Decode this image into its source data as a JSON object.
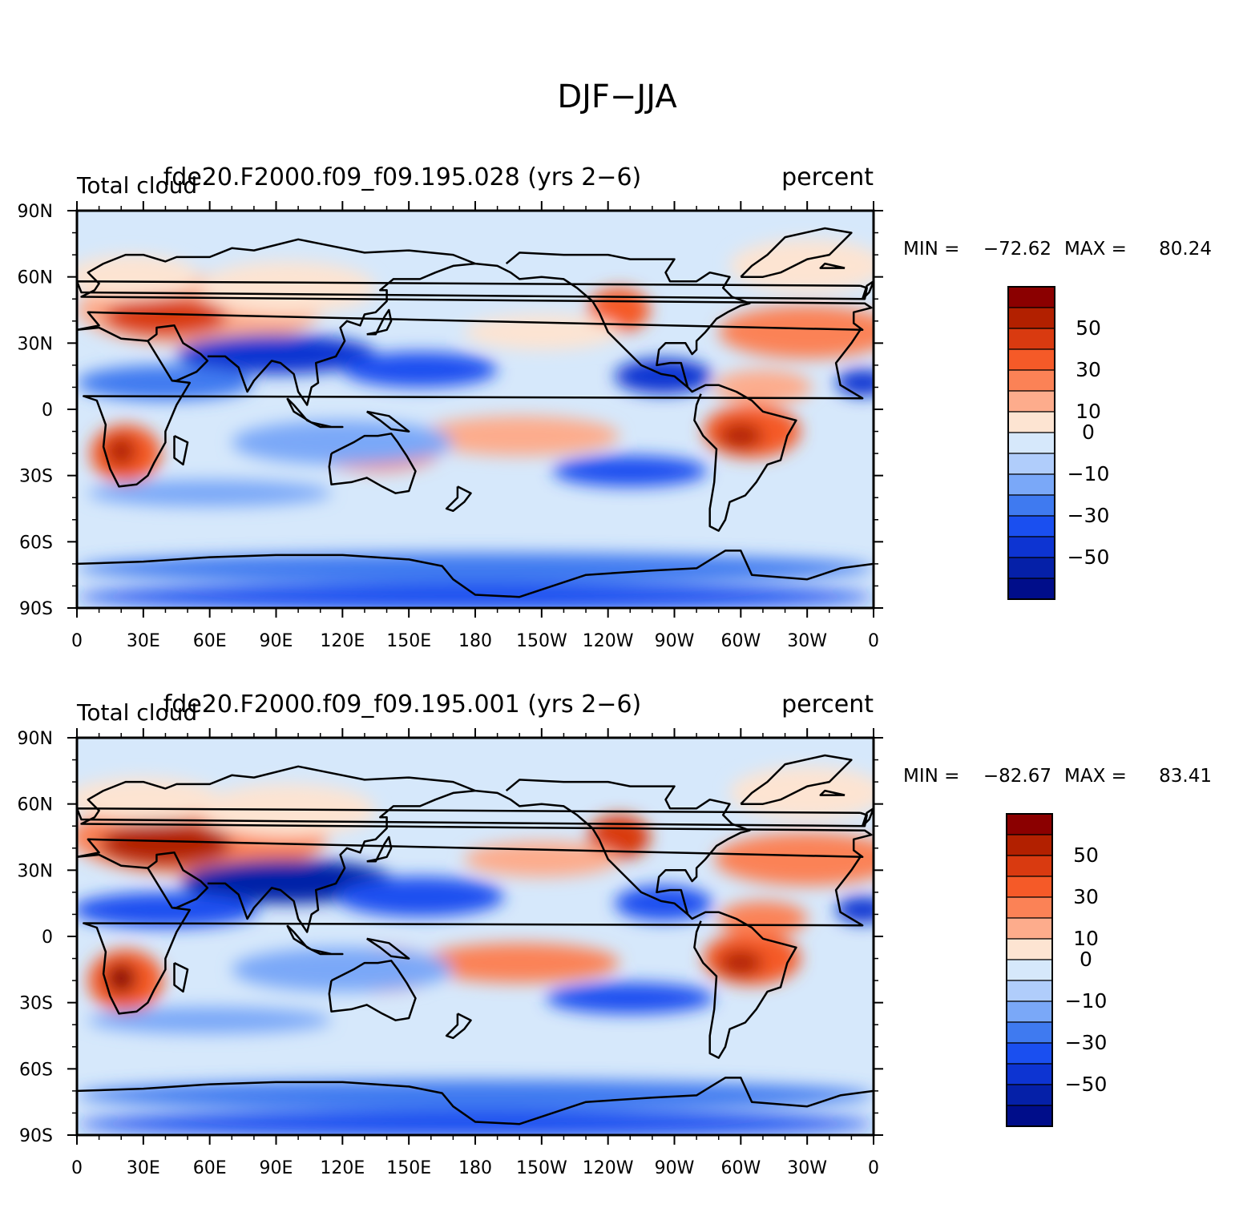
{
  "figure": {
    "title": "DJF−JJA"
  },
  "panels": [
    {
      "left_title": "Total cloud",
      "center_title": "fde20.F2000.f09_f09.195.028 (yrs 2−6)",
      "right_title": "percent",
      "stats": {
        "min_label": "MIN =",
        "min_value": "−72.62",
        "max_label": "MAX =",
        "max_value": "80.24"
      }
    },
    {
      "left_title": "Total cloud",
      "center_title": "fde20.F2000.f09_f09.195.001 (yrs 2−6)",
      "right_title": "percent",
      "stats": {
        "min_label": "MIN =",
        "min_value": "−82.67",
        "max_label": "MAX =",
        "max_value": "83.41"
      }
    }
  ],
  "axes": {
    "lat_ticks": [
      {
        "value": 90,
        "label": "90N"
      },
      {
        "value": 60,
        "label": "60N"
      },
      {
        "value": 30,
        "label": "30N"
      },
      {
        "value": 0,
        "label": "0"
      },
      {
        "value": -30,
        "label": "30S"
      },
      {
        "value": -60,
        "label": "60S"
      },
      {
        "value": -90,
        "label": "90S"
      }
    ],
    "lon_ticks": [
      {
        "value": 0,
        "label": "0"
      },
      {
        "value": 30,
        "label": "30E"
      },
      {
        "value": 60,
        "label": "60E"
      },
      {
        "value": 90,
        "label": "90E"
      },
      {
        "value": 120,
        "label": "120E"
      },
      {
        "value": 150,
        "label": "150E"
      },
      {
        "value": 180,
        "label": "180"
      },
      {
        "value": 210,
        "label": "150W"
      },
      {
        "value": 240,
        "label": "120W"
      },
      {
        "value": 270,
        "label": "90W"
      },
      {
        "value": 300,
        "label": "60W"
      },
      {
        "value": 330,
        "label": "30W"
      },
      {
        "value": 360,
        "label": "0"
      }
    ],
    "lon_range": [
      0,
      360
    ],
    "lat_range": [
      -90,
      90
    ]
  },
  "colorbar": {
    "colors": [
      "#8b0000",
      "#b22000",
      "#d93a10",
      "#f55a28",
      "#fb8256",
      "#fdac8c",
      "#fde4d2",
      "#d6e8fb",
      "#b0cdfb",
      "#7aa8f8",
      "#3f7af0",
      "#1a4ff0",
      "#0d34d2",
      "#0520a8",
      "#000d8a"
    ],
    "labels": [
      {
        "boundary": 2,
        "label": "50"
      },
      {
        "boundary": 4,
        "label": "30"
      },
      {
        "boundary": 6,
        "label": "10"
      },
      {
        "boundary": 7,
        "label": "0"
      },
      {
        "boundary": 9,
        "label": "−10"
      },
      {
        "boundary": 11,
        "label": "−30"
      },
      {
        "boundary": 13,
        "label": "−50"
      }
    ]
  },
  "map_fields": [
    {
      "background": "#d6e8fb",
      "anomalies": [
        {
          "lon": 55,
          "lat": 45,
          "rx": 55,
          "ry": 16,
          "level": 5
        },
        {
          "lon": 40,
          "lat": 42,
          "rx": 28,
          "ry": 9,
          "level": 2
        },
        {
          "lon": 25,
          "lat": 60,
          "rx": 30,
          "ry": 10,
          "level": 6
        },
        {
          "lon": 95,
          "lat": 55,
          "rx": 40,
          "ry": 12,
          "level": 6
        },
        {
          "lon": 22,
          "lat": -20,
          "rx": 16,
          "ry": 13,
          "level": 3
        },
        {
          "lon": 20,
          "lat": -19,
          "rx": 7,
          "ry": 7,
          "level": 1
        },
        {
          "lon": 135,
          "lat": -18,
          "rx": 30,
          "ry": 10,
          "level": 4
        },
        {
          "lon": 200,
          "lat": -12,
          "rx": 45,
          "ry": 9,
          "level": 5
        },
        {
          "lon": 305,
          "lat": -10,
          "rx": 22,
          "ry": 12,
          "level": 3
        },
        {
          "lon": 300,
          "lat": -12,
          "rx": 10,
          "ry": 6,
          "level": 1
        },
        {
          "lon": 245,
          "lat": 45,
          "rx": 14,
          "ry": 10,
          "level": 3
        },
        {
          "lon": 330,
          "lat": 35,
          "rx": 40,
          "ry": 12,
          "level": 4
        },
        {
          "lon": 310,
          "lat": 10,
          "rx": 22,
          "ry": 8,
          "level": 5
        },
        {
          "lon": 210,
          "lat": 35,
          "rx": 35,
          "ry": 8,
          "level": 6
        },
        {
          "lon": 330,
          "lat": 65,
          "rx": 35,
          "ry": 12,
          "level": 6
        },
        {
          "lon": 90,
          "lat": 25,
          "rx": 45,
          "ry": 9,
          "level": 12
        },
        {
          "lon": 40,
          "lat": 12,
          "rx": 40,
          "ry": 8,
          "level": 10
        },
        {
          "lon": 155,
          "lat": 18,
          "rx": 35,
          "ry": 8,
          "level": 11
        },
        {
          "lon": 265,
          "lat": 15,
          "rx": 22,
          "ry": 8,
          "level": 12
        },
        {
          "lon": 120,
          "lat": -15,
          "rx": 50,
          "ry": 10,
          "level": 9
        },
        {
          "lon": 250,
          "lat": -28,
          "rx": 35,
          "ry": 7,
          "level": 11
        },
        {
          "lon": 60,
          "lat": -38,
          "rx": 55,
          "ry": 6,
          "level": 9
        },
        {
          "lon": 180,
          "lat": -72,
          "rx": 180,
          "ry": 7,
          "level": 10
        },
        {
          "lon": 180,
          "lat": -85,
          "rx": 180,
          "ry": 6,
          "level": 11
        },
        {
          "lon": 355,
          "lat": 12,
          "rx": 12,
          "ry": 6,
          "level": 12
        }
      ]
    },
    {
      "background": "#d6e8fb",
      "anomalies": [
        {
          "lon": 55,
          "lat": 45,
          "rx": 58,
          "ry": 17,
          "level": 4
        },
        {
          "lon": 40,
          "lat": 42,
          "rx": 30,
          "ry": 10,
          "level": 1
        },
        {
          "lon": 30,
          "lat": 62,
          "rx": 35,
          "ry": 10,
          "level": 6
        },
        {
          "lon": 95,
          "lat": 57,
          "rx": 40,
          "ry": 12,
          "level": 6
        },
        {
          "lon": 22,
          "lat": -20,
          "rx": 17,
          "ry": 14,
          "level": 3
        },
        {
          "lon": 20,
          "lat": -19,
          "rx": 7,
          "ry": 7,
          "level": 0
        },
        {
          "lon": 135,
          "lat": -15,
          "rx": 30,
          "ry": 10,
          "level": 4
        },
        {
          "lon": 200,
          "lat": -12,
          "rx": 45,
          "ry": 9,
          "level": 4
        },
        {
          "lon": 305,
          "lat": -10,
          "rx": 22,
          "ry": 12,
          "level": 3
        },
        {
          "lon": 300,
          "lat": -12,
          "rx": 10,
          "ry": 6,
          "level": 1
        },
        {
          "lon": 245,
          "lat": 45,
          "rx": 14,
          "ry": 10,
          "level": 2
        },
        {
          "lon": 330,
          "lat": 35,
          "rx": 42,
          "ry": 12,
          "level": 4
        },
        {
          "lon": 310,
          "lat": 8,
          "rx": 20,
          "ry": 8,
          "level": 4
        },
        {
          "lon": 210,
          "lat": 35,
          "rx": 35,
          "ry": 8,
          "level": 5
        },
        {
          "lon": 330,
          "lat": 65,
          "rx": 35,
          "ry": 12,
          "level": 6
        },
        {
          "lon": 95,
          "lat": 25,
          "rx": 48,
          "ry": 10,
          "level": 13
        },
        {
          "lon": 40,
          "lat": 12,
          "rx": 42,
          "ry": 8,
          "level": 11
        },
        {
          "lon": 155,
          "lat": 18,
          "rx": 38,
          "ry": 9,
          "level": 11
        },
        {
          "lon": 265,
          "lat": 15,
          "rx": 22,
          "ry": 8,
          "level": 11
        },
        {
          "lon": 120,
          "lat": -15,
          "rx": 50,
          "ry": 10,
          "level": 9
        },
        {
          "lon": 250,
          "lat": -28,
          "rx": 38,
          "ry": 7,
          "level": 11
        },
        {
          "lon": 60,
          "lat": -38,
          "rx": 55,
          "ry": 6,
          "level": 9
        },
        {
          "lon": 180,
          "lat": -72,
          "rx": 180,
          "ry": 7,
          "level": 10
        },
        {
          "lon": 180,
          "lat": -85,
          "rx": 180,
          "ry": 6,
          "level": 11
        },
        {
          "lon": 355,
          "lat": 12,
          "rx": 12,
          "ry": 6,
          "level": 12
        }
      ]
    }
  ]
}
